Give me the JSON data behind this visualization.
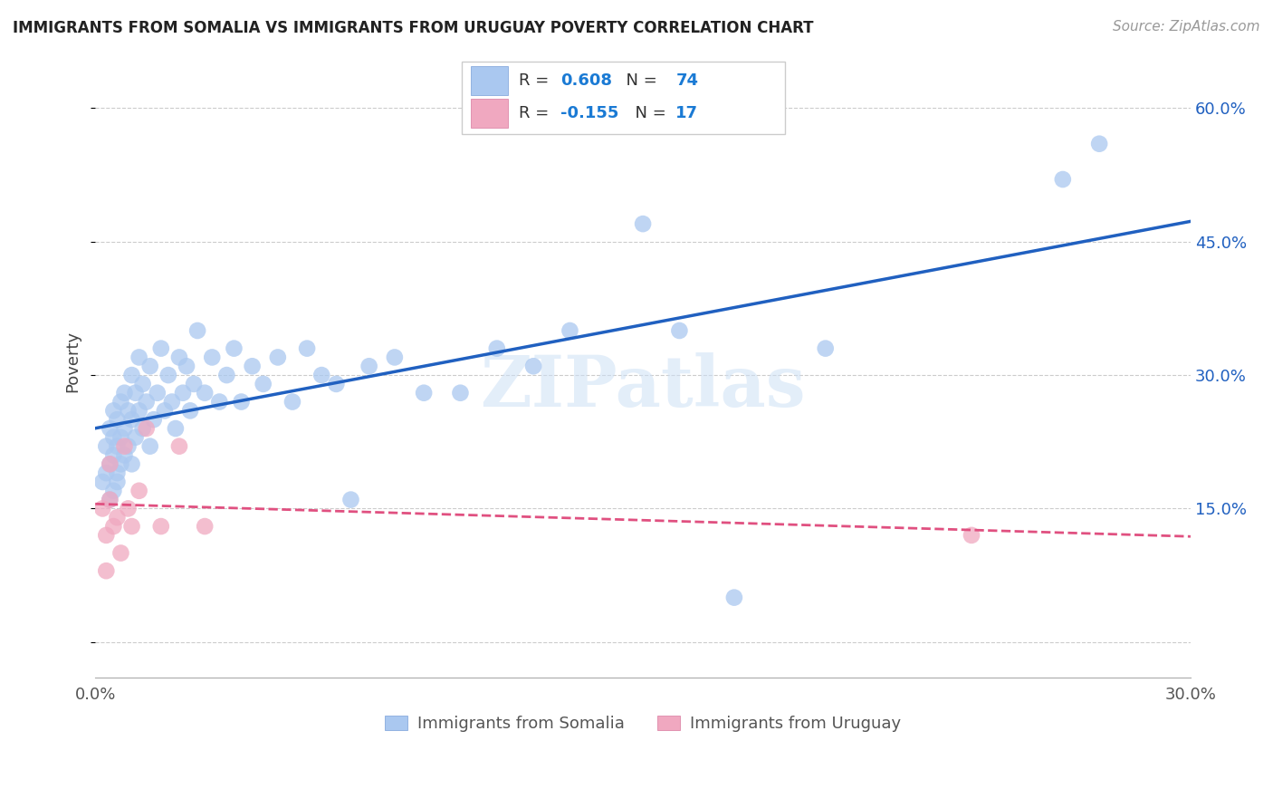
{
  "title": "IMMIGRANTS FROM SOMALIA VS IMMIGRANTS FROM URUGUAY POVERTY CORRELATION CHART",
  "source": "Source: ZipAtlas.com",
  "ylabel": "Poverty",
  "xlim": [
    0.0,
    0.3
  ],
  "ylim": [
    -0.04,
    0.67
  ],
  "ytick_vals": [
    0.0,
    0.15,
    0.3,
    0.45,
    0.6
  ],
  "xtick_vals": [
    0.0,
    0.05,
    0.1,
    0.15,
    0.2,
    0.25,
    0.3
  ],
  "xtick_labels": [
    "0.0%",
    "",
    "",
    "",
    "",
    "",
    "30.0%"
  ],
  "ytick_labels_right": [
    "",
    "15.0%",
    "30.0%",
    "45.0%",
    "60.0%"
  ],
  "somalia_R": 0.608,
  "somalia_N": 74,
  "uruguay_R": -0.155,
  "uruguay_N": 17,
  "somalia_color": "#aac8f0",
  "somalia_line_color": "#2060c0",
  "uruguay_color": "#f0a8c0",
  "uruguay_line_color": "#e05080",
  "legend_R_color": "#1a7ad4",
  "watermark_text": "ZIPatlas",
  "somalia_x": [
    0.002,
    0.003,
    0.003,
    0.004,
    0.004,
    0.004,
    0.005,
    0.005,
    0.005,
    0.005,
    0.006,
    0.006,
    0.006,
    0.006,
    0.007,
    0.007,
    0.007,
    0.008,
    0.008,
    0.008,
    0.009,
    0.009,
    0.01,
    0.01,
    0.01,
    0.011,
    0.011,
    0.012,
    0.012,
    0.013,
    0.013,
    0.014,
    0.015,
    0.015,
    0.016,
    0.017,
    0.018,
    0.019,
    0.02,
    0.021,
    0.022,
    0.023,
    0.024,
    0.025,
    0.026,
    0.027,
    0.028,
    0.03,
    0.032,
    0.034,
    0.036,
    0.038,
    0.04,
    0.043,
    0.046,
    0.05,
    0.054,
    0.058,
    0.062,
    0.066,
    0.07,
    0.075,
    0.082,
    0.09,
    0.1,
    0.11,
    0.12,
    0.13,
    0.15,
    0.16,
    0.175,
    0.2,
    0.265,
    0.275
  ],
  "somalia_y": [
    0.18,
    0.22,
    0.19,
    0.24,
    0.2,
    0.16,
    0.26,
    0.21,
    0.17,
    0.23,
    0.25,
    0.19,
    0.22,
    0.18,
    0.27,
    0.23,
    0.2,
    0.28,
    0.24,
    0.21,
    0.26,
    0.22,
    0.3,
    0.25,
    0.2,
    0.28,
    0.23,
    0.32,
    0.26,
    0.29,
    0.24,
    0.27,
    0.31,
    0.22,
    0.25,
    0.28,
    0.33,
    0.26,
    0.3,
    0.27,
    0.24,
    0.32,
    0.28,
    0.31,
    0.26,
    0.29,
    0.35,
    0.28,
    0.32,
    0.27,
    0.3,
    0.33,
    0.27,
    0.31,
    0.29,
    0.32,
    0.27,
    0.33,
    0.3,
    0.29,
    0.16,
    0.31,
    0.32,
    0.28,
    0.28,
    0.33,
    0.31,
    0.35,
    0.47,
    0.35,
    0.05,
    0.33,
    0.52,
    0.56
  ],
  "uruguay_x": [
    0.002,
    0.003,
    0.003,
    0.004,
    0.004,
    0.005,
    0.006,
    0.007,
    0.008,
    0.009,
    0.01,
    0.012,
    0.014,
    0.018,
    0.023,
    0.03,
    0.24
  ],
  "uruguay_y": [
    0.15,
    0.12,
    0.08,
    0.16,
    0.2,
    0.13,
    0.14,
    0.1,
    0.22,
    0.15,
    0.13,
    0.17,
    0.24,
    0.13,
    0.22,
    0.13,
    0.12
  ],
  "grid_color": "#cccccc",
  "background_color": "#ffffff"
}
